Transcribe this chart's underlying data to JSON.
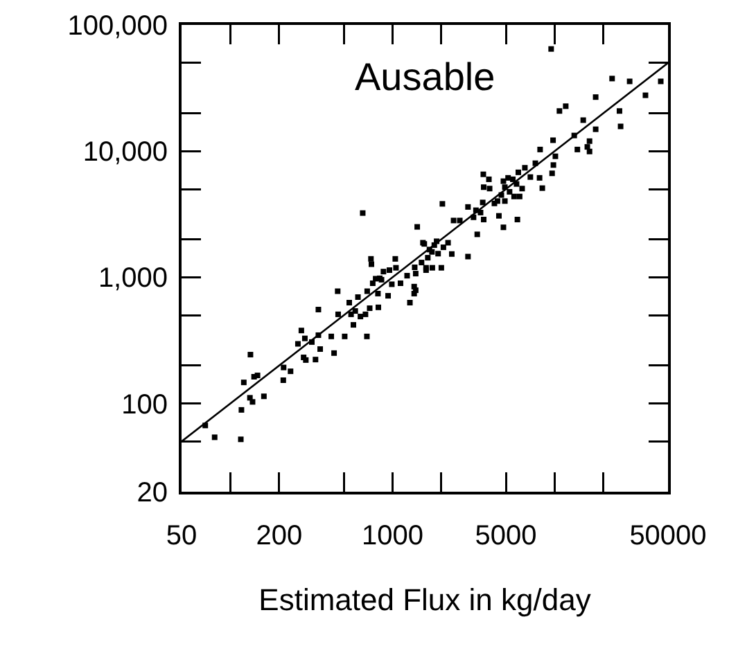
{
  "chart_data": {
    "type": "scatter",
    "title": "Ausable",
    "xlabel": "Estimated Flux in kg/day",
    "log": "xy",
    "grid": false,
    "marker": "square",
    "xlim": [
      50,
      50000
    ],
    "ylim": [
      20,
      100000
    ],
    "xticks": [
      50,
      {
        "value": 100,
        "label": null
      },
      200,
      {
        "value": 500,
        "label": null
      },
      1000,
      {
        "value": 2000,
        "label": null
      },
      5000,
      {
        "value": 10000,
        "label": null
      },
      {
        "value": 20000,
        "label": null
      },
      50000
    ],
    "yticks": [
      20,
      {
        "value": 50,
        "label": null
      },
      100,
      {
        "value": 200,
        "label": null
      },
      {
        "value": 500,
        "label": null
      },
      {
        "value": 1000,
        "label": "1,000"
      },
      {
        "value": 2000,
        "label": null
      },
      {
        "value": 5000,
        "label": null
      },
      {
        "value": 10000,
        "label": "10,000"
      },
      {
        "value": 20000,
        "label": null
      },
      {
        "value": 50000,
        "label": null
      },
      {
        "value": 100000,
        "label": "100,000"
      }
    ],
    "series": [
      {
        "type": "scatter",
        "color": "#000000",
        "x": [
          70,
          80,
          116,
          117,
          133,
          121,
          132,
          137,
          140,
          147,
          161,
          213,
          212,
          235,
          274,
          261,
          283,
          288,
          292,
          318,
          335,
          349,
          349,
          358,
          419,
          436,
          459,
          462,
          507,
          541,
          555,
          574,
          589,
          612,
          634,
          681,
          695,
          698,
          723,
          736,
          741,
          755,
          787,
          813,
          818,
          834,
          855,
          879,
          939,
          957,
          990,
          1040,
          1050,
          1120,
          1230,
          1280,
          1360,
          1360,
          1370,
          1390,
          1510,
          1570,
          1610,
          1650,
          1750,
          1810,
          1870,
          2000,
          655,
          1420,
          2030,
          1690,
          1910,
          9510,
          22600,
          29000,
          45100,
          36300,
          17900,
          10700,
          11700,
          15000,
          25100,
          25500,
          17900,
          13200,
          16400,
          9770,
          13800,
          15900,
          16400,
          8130,
          10100,
          9820,
          7600,
          6550,
          7080,
          5970,
          8070,
          9640,
          8390,
          3630,
          3930,
          3650,
          3970,
          4830,
          5160,
          5520,
          5820,
          4930,
          5270,
          6300,
          4690,
          5620,
          4930,
          6080,
          3600,
          4250,
          4440,
          2920,
          3270,
          3490,
          3160,
          3650,
          4530,
          4830,
          5890,
          2380,
          2600,
          3330,
          1540,
          2200,
          2060,
          2320,
          2920,
          1610,
          1390,
          1760
        ],
        "values": [
          67,
          54,
          52,
          89,
          244,
          147,
          111,
          103,
          163,
          167,
          114,
          193,
          153,
          180,
          379,
          297,
          232,
          328,
          221,
          307,
          223,
          348,
          555,
          270,
          340,
          251,
          776,
          509,
          340,
          630,
          509,
          420,
          541,
          697,
          489,
          509,
          340,
          776,
          569,
          1400,
          1270,
          897,
          975,
          743,
          578,
          982,
          957,
          1110,
          714,
          1140,
          881,
          1400,
          1190,
          897,
          1030,
          630,
          844,
          743,
          1200,
          1070,
          1310,
          1840,
          1190,
          1430,
          1590,
          1800,
          1930,
          1190,
          3230,
          2510,
          3820,
          1660,
          1540,
          64500,
          37600,
          35700,
          35700,
          27700,
          26800,
          20800,
          22700,
          17600,
          20800,
          15700,
          14900,
          13300,
          12000,
          12200,
          10300,
          10800,
          9930,
          10300,
          9100,
          7760,
          8020,
          7380,
          6230,
          6790,
          6140,
          6670,
          5090,
          6550,
          5980,
          5180,
          5050,
          5780,
          6140,
          5980,
          5490,
          5180,
          4760,
          5050,
          4490,
          4370,
          4020,
          4370,
          3920,
          3850,
          4020,
          3610,
          3400,
          3260,
          2990,
          2870,
          3070,
          2490,
          2870,
          2820,
          2820,
          2190,
          1880,
          1880,
          1730,
          1530,
          1460,
          1140,
          790,
          1190
        ]
      },
      {
        "type": "line",
        "color": "#000000",
        "line_style": "solid",
        "marker": "none",
        "x": [
          50,
          50000
        ],
        "values": [
          50,
          50000
        ]
      }
    ]
  }
}
